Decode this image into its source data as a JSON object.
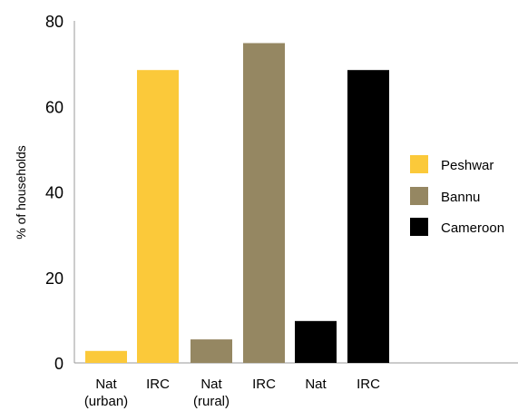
{
  "chart_data": {
    "type": "bar",
    "ylabel": "% of households",
    "ylim": [
      0,
      80
    ],
    "yticks": [
      "0",
      "20",
      "40",
      "60",
      "80"
    ],
    "grid": false,
    "legend_placement": "right",
    "legend": [
      {
        "name": "Peshwar",
        "color": "#FBC93A"
      },
      {
        "name": "Bannu",
        "color": "#958762"
      },
      {
        "name": "Cameroon",
        "color": "#000000"
      }
    ],
    "categories": [
      {
        "label": [
          "Nat",
          "(urban)"
        ],
        "value": 2.8,
        "color": "#FBC93A"
      },
      {
        "label": [
          "IRC"
        ],
        "value": 68.5,
        "color": "#FBC93A"
      },
      {
        "label": [
          "Nat",
          "(rural)"
        ],
        "value": 5.5,
        "color": "#958762"
      },
      {
        "label": [
          "IRC"
        ],
        "value": 74.8,
        "color": "#958762"
      },
      {
        "label": [
          "Nat"
        ],
        "value": 9.8,
        "color": "#000000"
      },
      {
        "label": [
          "IRC"
        ],
        "value": 68.5,
        "color": "#000000"
      }
    ]
  }
}
